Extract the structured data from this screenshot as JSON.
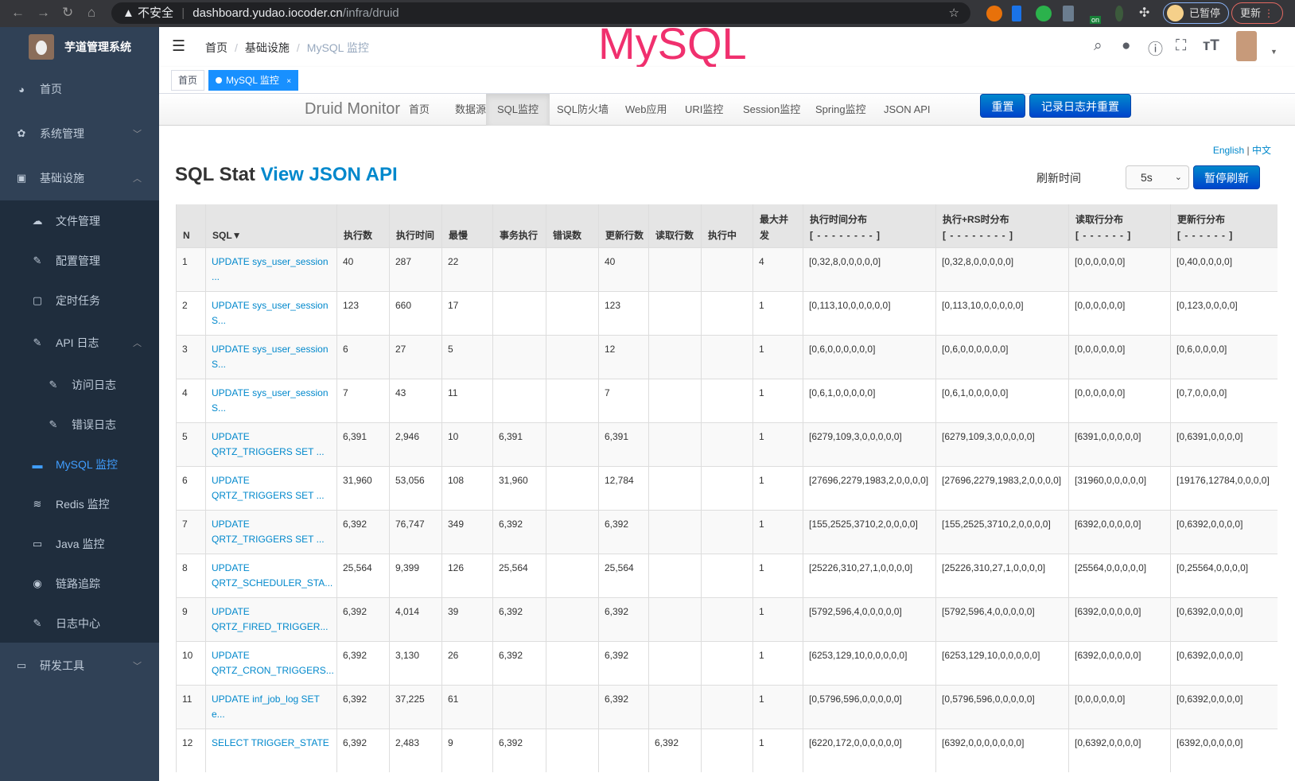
{
  "browser": {
    "security": "不安全",
    "url_host": "dashboard.yudao.iocoder.cn",
    "url_path": "/infra/druid",
    "paused": "已暂停",
    "update": "更新",
    "ext_badge": "on"
  },
  "app": {
    "title": "芋道管理系统"
  },
  "sidebar": {
    "items": [
      {
        "label": "首页",
        "icon": "dashboard-icon"
      },
      {
        "label": "系统管理",
        "icon": "gear-icon"
      },
      {
        "label": "基础设施",
        "icon": "monitor-icon"
      },
      {
        "label": "文件管理",
        "icon": "cloud-upload-icon"
      },
      {
        "label": "配置管理",
        "icon": "edit-icon"
      },
      {
        "label": "定时任务",
        "icon": "job-icon"
      },
      {
        "label": "API 日志",
        "icon": "log-icon"
      },
      {
        "label": "访问日志",
        "icon": "log-icon"
      },
      {
        "label": "错误日志",
        "icon": "log-icon"
      },
      {
        "label": "MySQL 监控",
        "icon": "chart-icon",
        "active": true
      },
      {
        "label": "Redis 监控",
        "icon": "redis-icon"
      },
      {
        "label": "Java 监控",
        "icon": "server-icon"
      },
      {
        "label": "链路追踪",
        "icon": "eye-icon"
      },
      {
        "label": "日志中心",
        "icon": "log-icon"
      },
      {
        "label": "研发工具",
        "icon": "toolbox-icon"
      }
    ]
  },
  "header": {
    "breadcrumb": [
      "首页",
      "基础设施",
      "MySQL 监控"
    ],
    "watermark": "MySQL"
  },
  "tags": [
    {
      "label": "首页"
    },
    {
      "label": "MySQL 监控",
      "close": "×"
    }
  ],
  "druid": {
    "brand": "Druid Monitor",
    "nav": [
      "首页",
      "数据源",
      "SQL监控",
      "SQL防火墙",
      "Web应用",
      "URI监控",
      "Session监控",
      "Spring监控",
      "JSON API"
    ],
    "reset": "重置",
    "log_reset": "记录日志并重置",
    "lang_en": "English",
    "lang_sep": "|",
    "lang_zh": "中文",
    "title": "SQL Stat",
    "title_link": "View JSON API",
    "refresh_label": "刷新时间",
    "refresh_value": "5s",
    "pause": "暂停刷新",
    "columns": [
      "N",
      "SQL▼",
      "执行数",
      "执行时间",
      "最慢",
      "事务执行",
      "错误数",
      "更新行数",
      "读取行数",
      "执行中",
      "最大并发",
      "执行时间分布",
      "执行+RS时分布",
      "读取行分布",
      "更新行分布"
    ],
    "column_subs": {
      "11": "[ - - - - - - - - ]",
      "12": "[ - - - - - - - - ]",
      "13": "[ - - - - - - ]",
      "14": "[ - - - - - - ]"
    },
    "rows": [
      [
        "1",
        "UPDATE sys_user_session ...",
        "40",
        "287",
        "22",
        "",
        "",
        "40",
        "",
        "",
        "4",
        "[0,32,8,0,0,0,0,0]",
        "[0,32,8,0,0,0,0,0]",
        "[0,0,0,0,0,0]",
        "[0,40,0,0,0,0]"
      ],
      [
        "2",
        "UPDATE sys_user_session S...",
        "123",
        "660",
        "17",
        "",
        "",
        "123",
        "",
        "",
        "1",
        "[0,113,10,0,0,0,0,0]",
        "[0,113,10,0,0,0,0,0]",
        "[0,0,0,0,0,0]",
        "[0,123,0,0,0,0]"
      ],
      [
        "3",
        "UPDATE sys_user_session S...",
        "6",
        "27",
        "5",
        "",
        "",
        "12",
        "",
        "",
        "1",
        "[0,6,0,0,0,0,0,0]",
        "[0,6,0,0,0,0,0,0]",
        "[0,0,0,0,0,0]",
        "[0,6,0,0,0,0]"
      ],
      [
        "4",
        "UPDATE sys_user_session S...",
        "7",
        "43",
        "11",
        "",
        "",
        "7",
        "",
        "",
        "1",
        "[0,6,1,0,0,0,0,0]",
        "[0,6,1,0,0,0,0,0]",
        "[0,0,0,0,0,0]",
        "[0,7,0,0,0,0]"
      ],
      [
        "5",
        "UPDATE QRTZ_TRIGGERS SET ...",
        "6,391",
        "2,946",
        "10",
        "6,391",
        "",
        "6,391",
        "",
        "",
        "1",
        "[6279,109,3,0,0,0,0,0]",
        "[6279,109,3,0,0,0,0,0]",
        "[6391,0,0,0,0,0]",
        "[0,6391,0,0,0,0]"
      ],
      [
        "6",
        "UPDATE QRTZ_TRIGGERS SET ...",
        "31,960",
        "53,056",
        "108",
        "31,960",
        "",
        "12,784",
        "",
        "",
        "1",
        "[27696,2279,1983,2,0,0,0,0]",
        "[27696,2279,1983,2,0,0,0,0]",
        "[31960,0,0,0,0,0]",
        "[19176,12784,0,0,0,0]"
      ],
      [
        "7",
        "UPDATE QRTZ_TRIGGERS SET ...",
        "6,392",
        "76,747",
        "349",
        "6,392",
        "",
        "6,392",
        "",
        "",
        "1",
        "[155,2525,3710,2,0,0,0,0]",
        "[155,2525,3710,2,0,0,0,0]",
        "[6392,0,0,0,0,0]",
        "[0,6392,0,0,0,0]"
      ],
      [
        "8",
        "UPDATE QRTZ_SCHEDULER_STA...",
        "25,564",
        "9,399",
        "126",
        "25,564",
        "",
        "25,564",
        "",
        "",
        "1",
        "[25226,310,27,1,0,0,0,0]",
        "[25226,310,27,1,0,0,0,0]",
        "[25564,0,0,0,0,0]",
        "[0,25564,0,0,0,0]"
      ],
      [
        "9",
        "UPDATE QRTZ_FIRED_TRIGGER...",
        "6,392",
        "4,014",
        "39",
        "6,392",
        "",
        "6,392",
        "",
        "",
        "1",
        "[5792,596,4,0,0,0,0,0]",
        "[5792,596,4,0,0,0,0,0]",
        "[6392,0,0,0,0,0]",
        "[0,6392,0,0,0,0]"
      ],
      [
        "10",
        "UPDATE QRTZ_CRON_TRIGGERS...",
        "6,392",
        "3,130",
        "26",
        "6,392",
        "",
        "6,392",
        "",
        "",
        "1",
        "[6253,129,10,0,0,0,0,0]",
        "[6253,129,10,0,0,0,0,0]",
        "[6392,0,0,0,0,0]",
        "[0,6392,0,0,0,0]"
      ],
      [
        "11",
        "UPDATE inf_job_log SET e...",
        "6,392",
        "37,225",
        "61",
        "",
        "",
        "6,392",
        "",
        "",
        "1",
        "[0,5796,596,0,0,0,0,0]",
        "[0,5796,596,0,0,0,0,0]",
        "[0,0,0,0,0,0]",
        "[0,6392,0,0,0,0]"
      ],
      [
        "12",
        "SELECT TRIGGER_STATE",
        "6,392",
        "2,483",
        "9",
        "6,392",
        "",
        "",
        "6,392",
        "",
        "1",
        "[6220,172,0,0,0,0,0,0]",
        "[6392,0,0,0,0,0,0,0]",
        "[0,6392,0,0,0,0]",
        "[6392,0,0,0,0,0]"
      ]
    ]
  },
  "colors": {
    "sidebar_bg": "#304156",
    "submenu_bg": "#1f2d3d",
    "active": "#409eff",
    "link": "#0088cc",
    "watermark": "#f0306e",
    "tag_active": "#1890ff"
  }
}
